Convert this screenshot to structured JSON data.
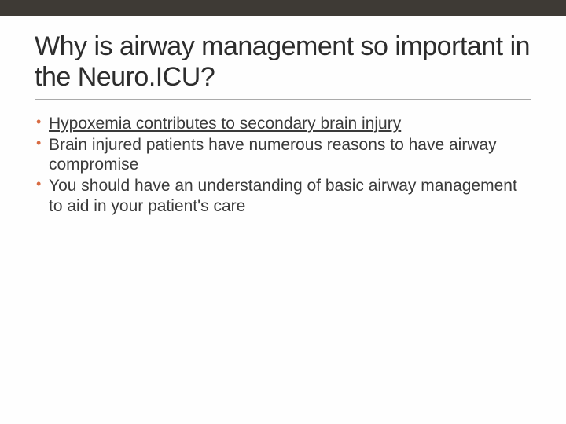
{
  "slide": {
    "title": "Why is airway management so important in the Neuro.ICU?",
    "title_fontsize": 34,
    "title_color": "#2d2d2d",
    "top_bar_color": "#3e3a35",
    "background_color": "#fefefe",
    "bullet_color": "#d86b42",
    "body_fontsize": 21,
    "body_color": "#3a3a3a",
    "divider_color": "#aaaaaa",
    "bullets": [
      {
        "text": "Hypoxemia contributes to secondary brain injury",
        "underline": true
      },
      {
        "text": "Brain injured patients have numerous reasons to have airway compromise",
        "underline": false
      },
      {
        "text": "You should have an understanding of basic airway management to aid in your patient's care",
        "underline": false
      }
    ]
  }
}
